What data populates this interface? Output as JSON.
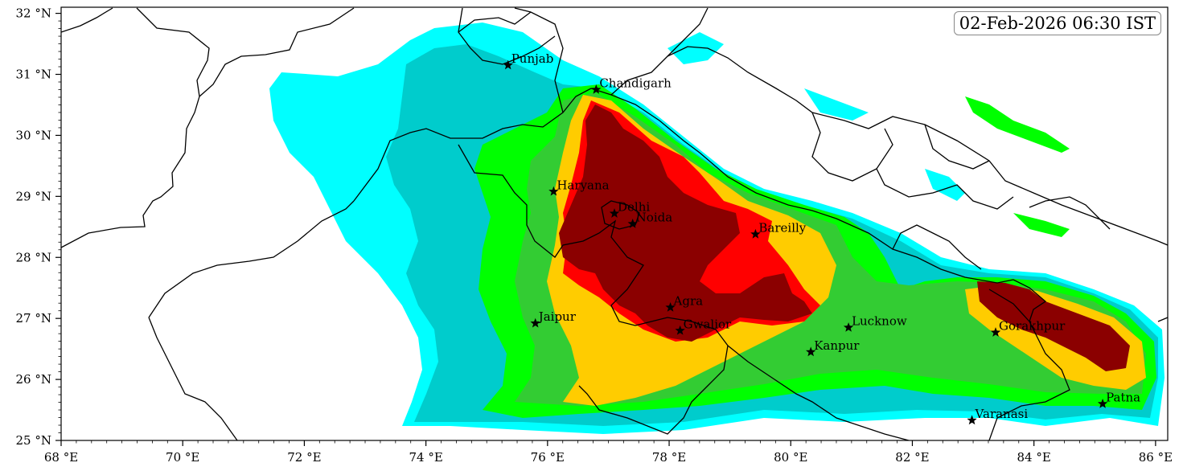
{
  "timestamp": "02-Feb-2026 06:30 IST",
  "extent": {
    "lon_min": 68,
    "lon_max": 86.2,
    "lat_min": 25,
    "lat_max": 32.1
  },
  "x_ticks": [
    {
      "value": 68,
      "label": "68 °E"
    },
    {
      "value": 70,
      "label": "70 °E"
    },
    {
      "value": 72,
      "label": "72 °E"
    },
    {
      "value": 74,
      "label": "74 °E"
    },
    {
      "value": 76,
      "label": "76 °E"
    },
    {
      "value": 78,
      "label": "78 °E"
    },
    {
      "value": 80,
      "label": "80 °E"
    },
    {
      "value": 82,
      "label": "82 °E"
    },
    {
      "value": 84,
      "label": "84 °E"
    },
    {
      "value": 86,
      "label": "86 °E"
    }
  ],
  "y_ticks": [
    {
      "value": 25,
      "label": "25 °N"
    },
    {
      "value": 26,
      "label": "26 °N"
    },
    {
      "value": 27,
      "label": "27 °N"
    },
    {
      "value": 28,
      "label": "28 °N"
    },
    {
      "value": 29,
      "label": "29 °N"
    },
    {
      "value": 30,
      "label": "30 °N"
    },
    {
      "value": 31,
      "label": "31 °N"
    },
    {
      "value": 32,
      "label": "32 °N"
    }
  ],
  "cities": [
    {
      "name": "Punjab",
      "lon": 75.35,
      "lat": 31.15
    },
    {
      "name": "Chandigarh",
      "lon": 76.8,
      "lat": 30.75
    },
    {
      "name": "Haryana",
      "lon": 76.1,
      "lat": 29.08
    },
    {
      "name": "Delhi",
      "lon": 77.1,
      "lat": 28.72
    },
    {
      "name": "Noida",
      "lon": 77.4,
      "lat": 28.55
    },
    {
      "name": "Bareilly",
      "lon": 79.42,
      "lat": 28.38
    },
    {
      "name": "Agra",
      "lon": 78.02,
      "lat": 27.18
    },
    {
      "name": "Gwalior",
      "lon": 78.18,
      "lat": 26.8
    },
    {
      "name": "Jaipur",
      "lon": 75.8,
      "lat": 26.92
    },
    {
      "name": "Lucknow",
      "lon": 80.95,
      "lat": 26.85
    },
    {
      "name": "Kanpur",
      "lon": 80.33,
      "lat": 26.45
    },
    {
      "name": "Gorakhpur",
      "lon": 83.37,
      "lat": 26.77
    },
    {
      "name": "Varanasi",
      "lon": 82.98,
      "lat": 25.33
    },
    {
      "name": "Patna",
      "lon": 85.13,
      "lat": 25.6
    }
  ],
  "colors": {
    "level1": "#00ffff",
    "level2": "#00cccc",
    "level3": "#00ff00",
    "level4": "#33cc33",
    "level5": "#ffcc00",
    "level6": "#ff0000",
    "level7": "#8b0000"
  }
}
